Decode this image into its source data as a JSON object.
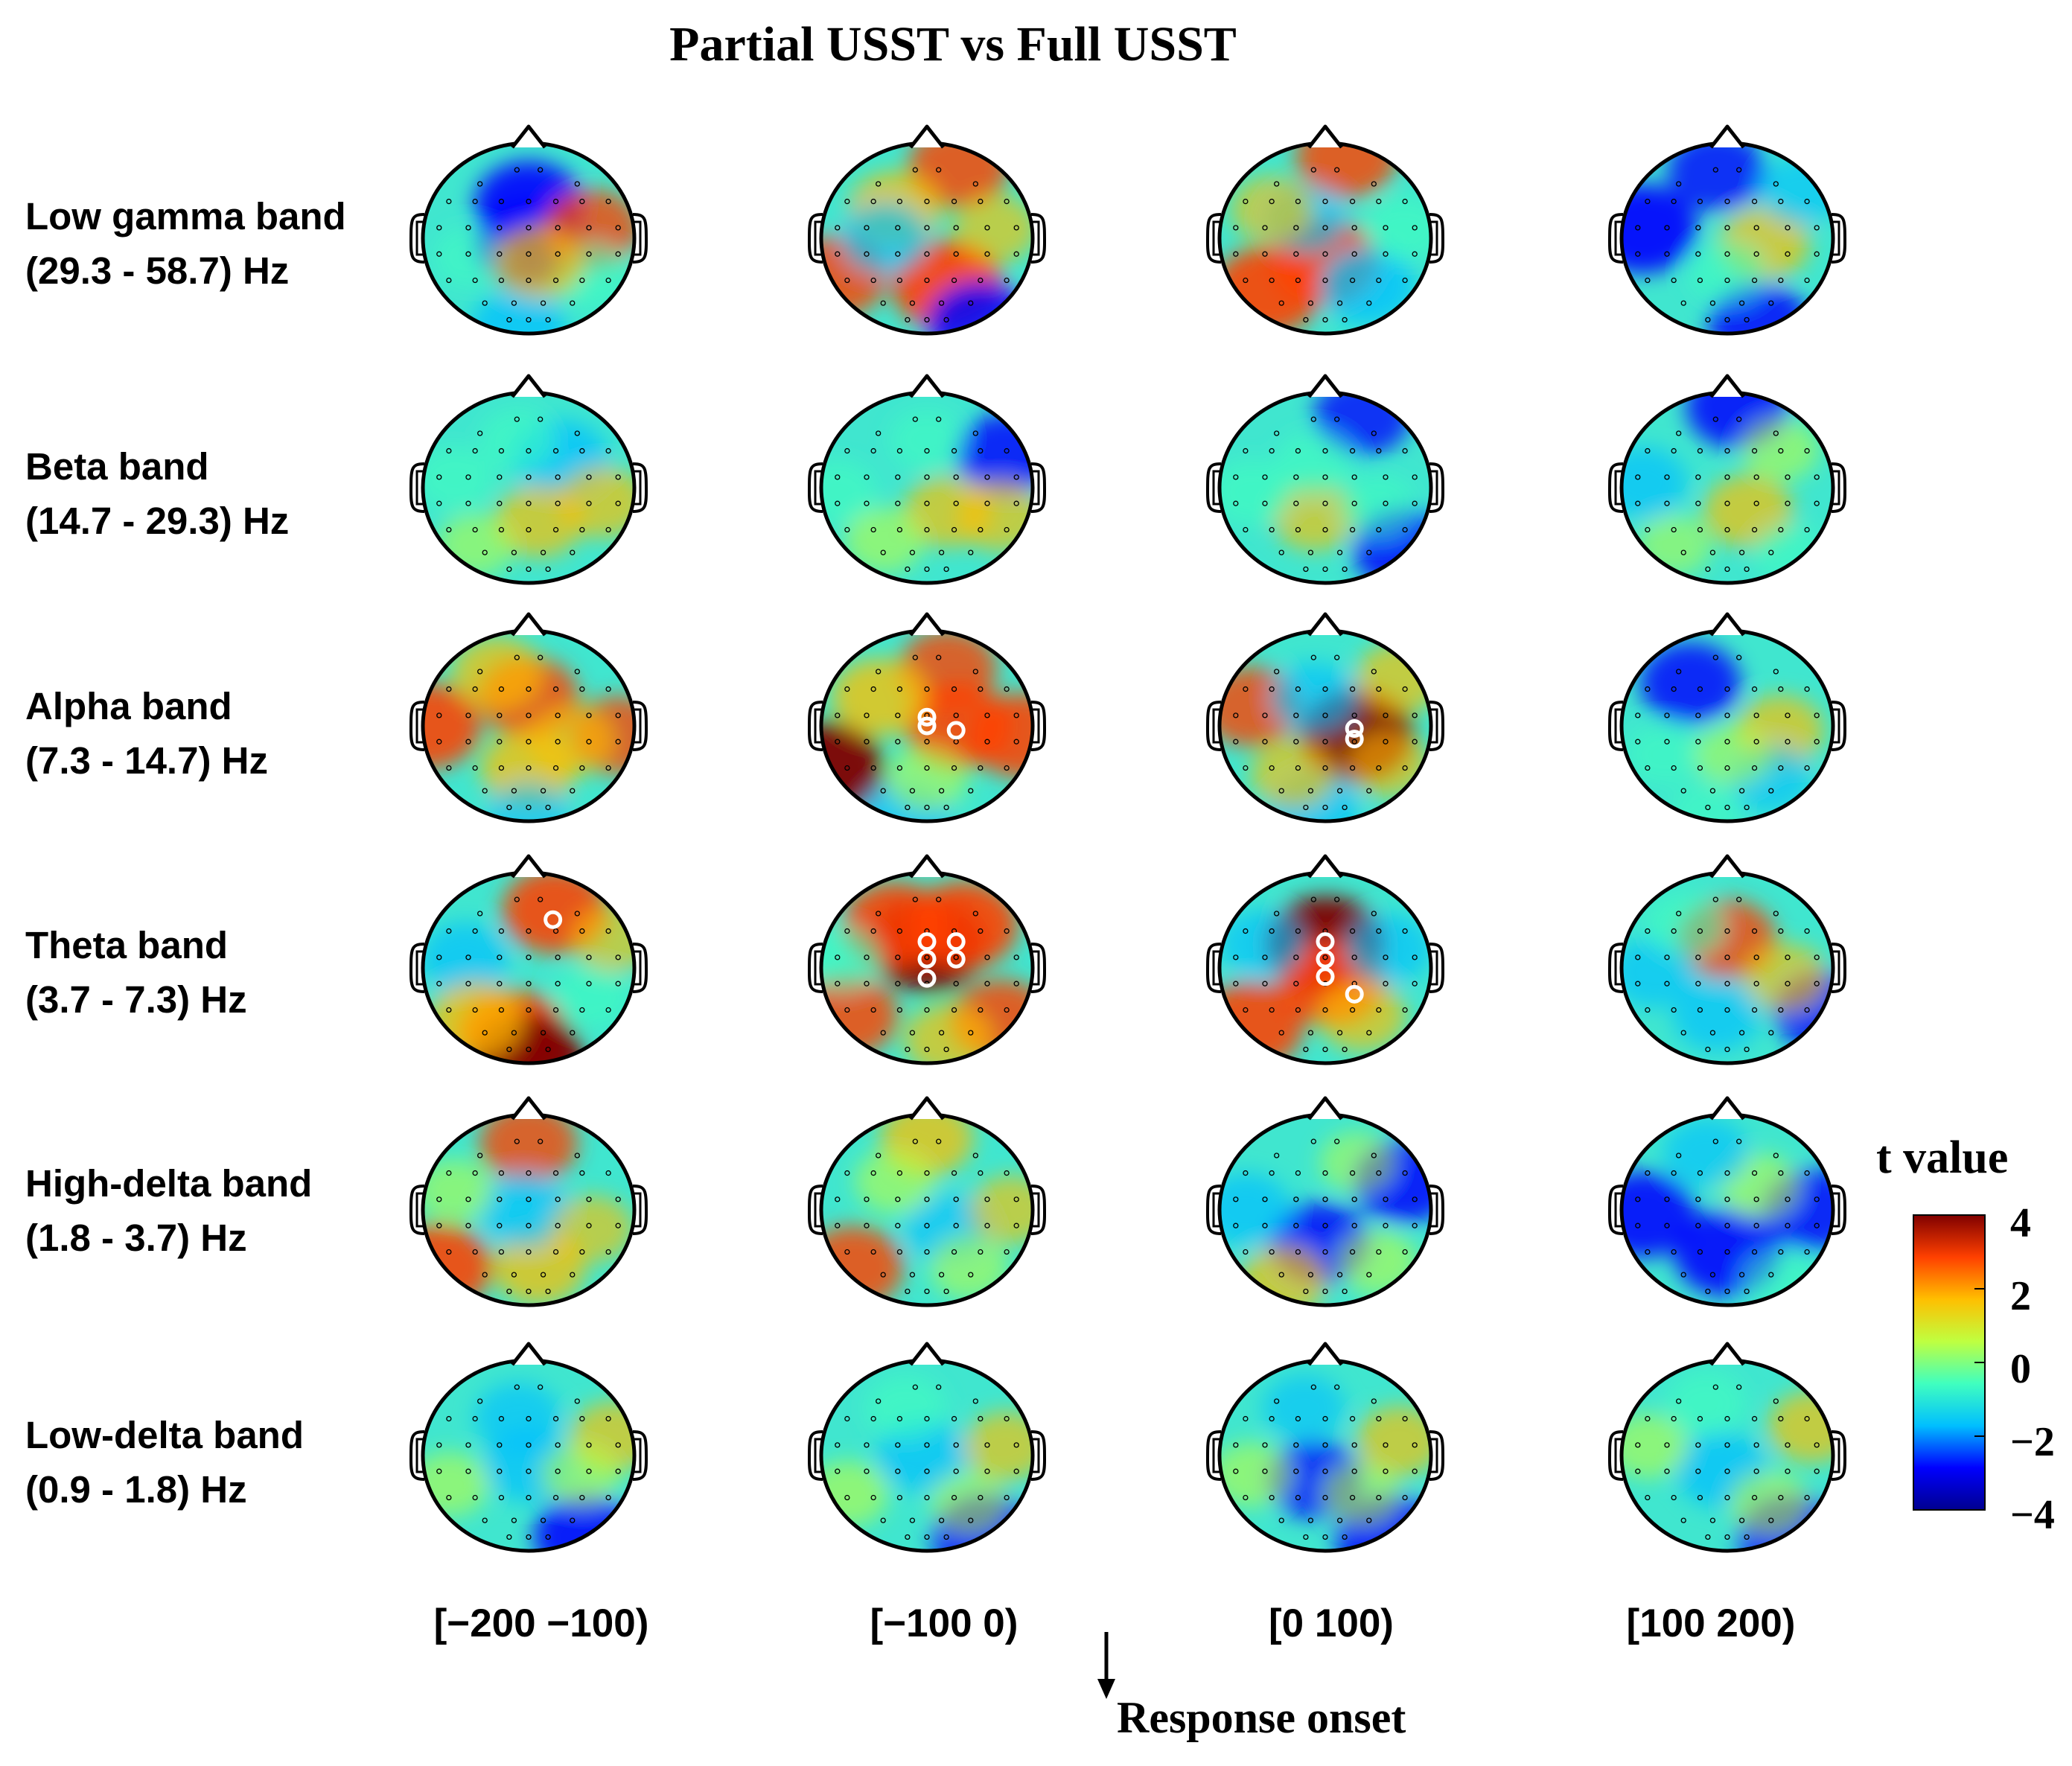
{
  "chart_data": {
    "type": "heatmap",
    "subtype": "eeg-scalp-topography-grid",
    "title": "Partial USST vs Full USST",
    "rows": [
      {
        "line1": "Low gamma band",
        "line2": "(29.3 - 58.7) Hz"
      },
      {
        "line1": "Beta band",
        "line2": "(14.7 - 29.3) Hz"
      },
      {
        "line1": "Alpha band",
        "line2": "(7.3 - 14.7) Hz"
      },
      {
        "line1": "Theta band",
        "line2": "(3.7 - 7.3) Hz"
      },
      {
        "line1": "High-delta band",
        "line2": "(1.8 - 3.7) Hz"
      },
      {
        "line1": "Low-delta band",
        "line2": "(0.9 - 1.8) Hz"
      }
    ],
    "columns": [
      "[−200 −100)",
      "[−100 0)",
      "[0 100)",
      "[100 200)"
    ],
    "xlabel": "Response onset",
    "colorbar": {
      "title": "t value",
      "range": [
        -4,
        4
      ],
      "ticks": [
        "4",
        "2",
        "0",
        "−2",
        "−4"
      ],
      "colormap": [
        "#00008f",
        "#0000ff",
        "#00bfff",
        "#40ffbf",
        "#bfff40",
        "#ffbf00",
        "#ff4000",
        "#800000"
      ]
    },
    "topomaps": [
      {
        "row": 0,
        "col": 0,
        "blobs": [
          [
            0.0,
            -0.35,
            -3.2
          ],
          [
            0.0,
            0.05,
            -3.0
          ],
          [
            0.6,
            -0.1,
            2.3
          ],
          [
            -0.1,
            0.95,
            -2.2
          ],
          [
            0.6,
            0.4,
            -1.0
          ],
          [
            -0.55,
            0.2,
            -0.5
          ],
          [
            0.1,
            0.25,
            1.8
          ]
        ],
        "sig": []
      },
      {
        "row": 0,
        "col": 1,
        "blobs": [
          [
            0.3,
            -0.75,
            2.6
          ],
          [
            -0.3,
            -0.3,
            2.0
          ],
          [
            0.2,
            0.5,
            3.4
          ],
          [
            -0.85,
            0.4,
            2.6
          ],
          [
            0.5,
            0.9,
            -3.0
          ],
          [
            -0.4,
            0.0,
            -1.6
          ],
          [
            0.65,
            -0.1,
            1.3
          ]
        ],
        "sig": []
      },
      {
        "row": 0,
        "col": 2,
        "blobs": [
          [
            0.2,
            -0.85,
            2.6
          ],
          [
            -0.55,
            0.55,
            3.2
          ],
          [
            0.0,
            0.25,
            3.0
          ],
          [
            0.4,
            0.5,
            -2.2
          ],
          [
            -0.2,
            -0.2,
            -1.4
          ],
          [
            0.75,
            -0.1,
            -1.0
          ],
          [
            -0.5,
            -0.3,
            1.2
          ]
        ],
        "sig": []
      },
      {
        "row": 0,
        "col": 3,
        "blobs": [
          [
            -0.8,
            -0.1,
            -3.3
          ],
          [
            -0.1,
            -0.7,
            -2.4
          ],
          [
            0.3,
            0.9,
            -2.6
          ],
          [
            0.35,
            0.05,
            1.8
          ],
          [
            0.7,
            -0.5,
            -1.3
          ],
          [
            0.0,
            0.35,
            -0.8
          ]
        ],
        "sig": []
      },
      {
        "row": 1,
        "col": 0,
        "blobs": [
          [
            0.3,
            -0.3,
            -2.2
          ],
          [
            0.1,
            0.35,
            1.7
          ],
          [
            0.7,
            0.15,
            1.6
          ],
          [
            -0.7,
            -0.1,
            -0.9
          ],
          [
            -0.1,
            -0.5,
            -0.7
          ],
          [
            -0.5,
            0.6,
            0.8
          ]
        ],
        "sig": []
      },
      {
        "row": 1,
        "col": 1,
        "blobs": [
          [
            0.75,
            -0.35,
            -2.6
          ],
          [
            -0.85,
            0.05,
            -0.9
          ],
          [
            0.2,
            0.25,
            1.6
          ],
          [
            0.7,
            0.3,
            1.5
          ],
          [
            0.0,
            -0.5,
            -0.6
          ],
          [
            -0.4,
            0.55,
            1.0
          ]
        ],
        "sig": []
      },
      {
        "row": 1,
        "col": 2,
        "blobs": [
          [
            0.35,
            -0.75,
            -2.3
          ],
          [
            0.75,
            0.65,
            -2.7
          ],
          [
            -0.1,
            0.3,
            1.4
          ],
          [
            -0.7,
            0.05,
            -1.1
          ],
          [
            0.5,
            0.2,
            -0.8
          ],
          [
            -0.1,
            -0.25,
            -0.9
          ]
        ],
        "sig": []
      },
      {
        "row": 1,
        "col": 3,
        "blobs": [
          [
            0.1,
            -0.85,
            -2.8
          ],
          [
            -0.8,
            -0.05,
            -1.7
          ],
          [
            0.2,
            0.25,
            1.7
          ],
          [
            0.5,
            -0.4,
            0.8
          ],
          [
            -0.5,
            0.6,
            0.6
          ],
          [
            0.6,
            0.7,
            -0.6
          ]
        ],
        "sig": []
      },
      {
        "row": 2,
        "col": 0,
        "blobs": [
          [
            -0.95,
            0.0,
            3.0
          ],
          [
            0.0,
            -0.3,
            2.6
          ],
          [
            0.85,
            0.1,
            2.3
          ],
          [
            0.0,
            0.45,
            2.2
          ],
          [
            -0.3,
            -0.55,
            1.8
          ],
          [
            0.0,
            0.95,
            -1.2
          ],
          [
            0.4,
            0.15,
            1.4
          ]
        ],
        "sig": []
      },
      {
        "row": 2,
        "col": 1,
        "blobs": [
          [
            -0.95,
            0.45,
            3.7
          ],
          [
            0.3,
            0.0,
            3.0
          ],
          [
            0.9,
            0.1,
            2.9
          ],
          [
            0.2,
            -0.6,
            2.4
          ],
          [
            -0.45,
            -0.3,
            2.2
          ],
          [
            -0.2,
            0.95,
            -1.8
          ],
          [
            0.0,
            0.55,
            1.0
          ]
        ],
        "sig": [
          [
            0.0,
            -0.1
          ],
          [
            0.0,
            0.0
          ],
          [
            0.3,
            0.05
          ]
        ]
      },
      {
        "row": 2,
        "col": 2,
        "blobs": [
          [
            0.3,
            0.1,
            3.6
          ],
          [
            -0.7,
            -0.2,
            2.4
          ],
          [
            -0.1,
            -0.3,
            -1.5
          ],
          [
            -0.1,
            0.85,
            -1.8
          ],
          [
            0.7,
            -0.5,
            1.6
          ],
          [
            -0.3,
            0.5,
            1.4
          ],
          [
            0.6,
            0.4,
            1.2
          ]
        ],
        "sig": [
          [
            0.3,
            0.03
          ],
          [
            0.3,
            0.15
          ]
        ]
      },
      {
        "row": 2,
        "col": 3,
        "blobs": [
          [
            -0.35,
            -0.45,
            -2.6
          ],
          [
            0.5,
            0.05,
            1.6
          ],
          [
            0.4,
            0.55,
            -1.2
          ],
          [
            -0.6,
            0.3,
            -0.6
          ],
          [
            0.05,
            0.3,
            0.7
          ],
          [
            -0.2,
            0.9,
            -0.5
          ]
        ],
        "sig": []
      },
      {
        "row": 3,
        "col": 0,
        "blobs": [
          [
            0.25,
            -0.6,
            3.0
          ],
          [
            -0.15,
            0.7,
            3.3
          ],
          [
            0.0,
            0.95,
            3.5
          ],
          [
            -0.6,
            -0.1,
            -1.7
          ],
          [
            0.6,
            0.3,
            -0.8
          ],
          [
            -0.5,
            0.55,
            2.2
          ],
          [
            0.8,
            -0.3,
            1.2
          ]
        ],
        "sig": [
          [
            0.25,
            -0.55
          ]
        ]
      },
      {
        "row": 3,
        "col": 1,
        "blobs": [
          [
            0.0,
            -0.25,
            3.8
          ],
          [
            0.35,
            -0.45,
            3.2
          ],
          [
            -0.3,
            -0.45,
            3.0
          ],
          [
            -0.75,
            0.5,
            2.6
          ],
          [
            0.7,
            0.55,
            2.6
          ],
          [
            -0.8,
            -0.1,
            -1.0
          ],
          [
            0.2,
            0.75,
            1.6
          ]
        ],
        "sig": [
          [
            0.0,
            -0.3
          ],
          [
            0.3,
            -0.3
          ],
          [
            0.0,
            -0.1
          ],
          [
            0.3,
            -0.1
          ],
          [
            0.0,
            0.12
          ]
        ]
      },
      {
        "row": 3,
        "col": 2,
        "blobs": [
          [
            0.0,
            -0.25,
            4.0
          ],
          [
            0.05,
            0.15,
            3.0
          ],
          [
            -0.7,
            0.6,
            3.0
          ],
          [
            0.6,
            -0.2,
            -1.5
          ],
          [
            -0.6,
            -0.25,
            -1.4
          ],
          [
            0.35,
            0.5,
            1.6
          ]
        ],
        "sig": [
          [
            0.0,
            -0.3
          ],
          [
            0.0,
            -0.1
          ],
          [
            0.0,
            0.1
          ],
          [
            0.3,
            0.3
          ]
        ]
      },
      {
        "row": 3,
        "col": 3,
        "blobs": [
          [
            0.0,
            -0.3,
            2.4
          ],
          [
            0.9,
            0.45,
            -2.4
          ],
          [
            -0.7,
            0.05,
            -1.5
          ],
          [
            -0.1,
            0.5,
            -1.6
          ],
          [
            0.55,
            0.1,
            1.3
          ],
          [
            -0.4,
            -0.45,
            -1.0
          ]
        ],
        "sig": []
      },
      {
        "row": 4,
        "col": 0,
        "blobs": [
          [
            -0.85,
            0.6,
            3.0
          ],
          [
            0.0,
            -0.7,
            2.4
          ],
          [
            0.1,
            0.6,
            2.0
          ],
          [
            -0.05,
            0.0,
            -1.8
          ],
          [
            0.6,
            0.2,
            1.2
          ],
          [
            -0.7,
            -0.2,
            0.8
          ]
        ],
        "sig": []
      },
      {
        "row": 4,
        "col": 1,
        "blobs": [
          [
            -0.7,
            0.6,
            2.6
          ],
          [
            0.0,
            -0.75,
            2.0
          ],
          [
            0.2,
            0.2,
            -1.6
          ],
          [
            0.8,
            0.0,
            1.3
          ],
          [
            -0.3,
            -0.3,
            1.0
          ],
          [
            0.4,
            0.6,
            0.9
          ]
        ],
        "sig": []
      },
      {
        "row": 4,
        "col": 2,
        "blobs": [
          [
            0.75,
            -0.3,
            -2.8
          ],
          [
            -0.05,
            0.35,
            -2.6
          ],
          [
            -0.75,
            0.0,
            -1.8
          ],
          [
            -0.4,
            0.75,
            1.6
          ],
          [
            0.5,
            0.55,
            1.0
          ],
          [
            0.3,
            -0.5,
            0.6
          ]
        ],
        "sig": []
      },
      {
        "row": 4,
        "col": 3,
        "blobs": [
          [
            -0.8,
            0.05,
            -3.0
          ],
          [
            0.0,
            0.45,
            -3.1
          ],
          [
            0.8,
            0.0,
            -2.6
          ],
          [
            0.3,
            -0.25,
            1.0
          ],
          [
            -0.2,
            -0.6,
            -1.4
          ],
          [
            0.5,
            0.75,
            -0.8
          ]
        ],
        "sig": []
      },
      {
        "row": 5,
        "col": 0,
        "blobs": [
          [
            0.55,
            0.85,
            -3.0
          ],
          [
            0.0,
            0.1,
            -1.8
          ],
          [
            -0.1,
            -0.4,
            -1.5
          ],
          [
            0.8,
            -0.2,
            1.5
          ],
          [
            -0.75,
            0.3,
            1.0
          ],
          [
            0.5,
            0.2,
            0.9
          ]
        ],
        "sig": []
      },
      {
        "row": 5,
        "col": 1,
        "blobs": [
          [
            0.55,
            0.85,
            -3.0
          ],
          [
            -0.05,
            0.0,
            -1.8
          ],
          [
            0.75,
            -0.1,
            1.4
          ],
          [
            -0.75,
            0.4,
            1.1
          ],
          [
            -0.2,
            -0.5,
            -1.0
          ],
          [
            0.4,
            0.5,
            0.8
          ]
        ],
        "sig": []
      },
      {
        "row": 5,
        "col": 2,
        "blobs": [
          [
            0.6,
            0.85,
            -3.0
          ],
          [
            -0.1,
            0.25,
            -2.3
          ],
          [
            0.7,
            -0.15,
            1.5
          ],
          [
            -0.7,
            0.2,
            1.0
          ],
          [
            -0.2,
            -0.5,
            -1.2
          ],
          [
            0.35,
            0.4,
            0.8
          ]
        ],
        "sig": []
      },
      {
        "row": 5,
        "col": 3,
        "blobs": [
          [
            0.6,
            0.85,
            -3.0
          ],
          [
            -0.05,
            0.15,
            -2.0
          ],
          [
            0.8,
            -0.3,
            1.6
          ],
          [
            -0.75,
            -0.1,
            1.0
          ],
          [
            -0.2,
            -0.55,
            -1.0
          ],
          [
            0.4,
            0.5,
            1.0
          ]
        ],
        "sig": []
      }
    ]
  }
}
